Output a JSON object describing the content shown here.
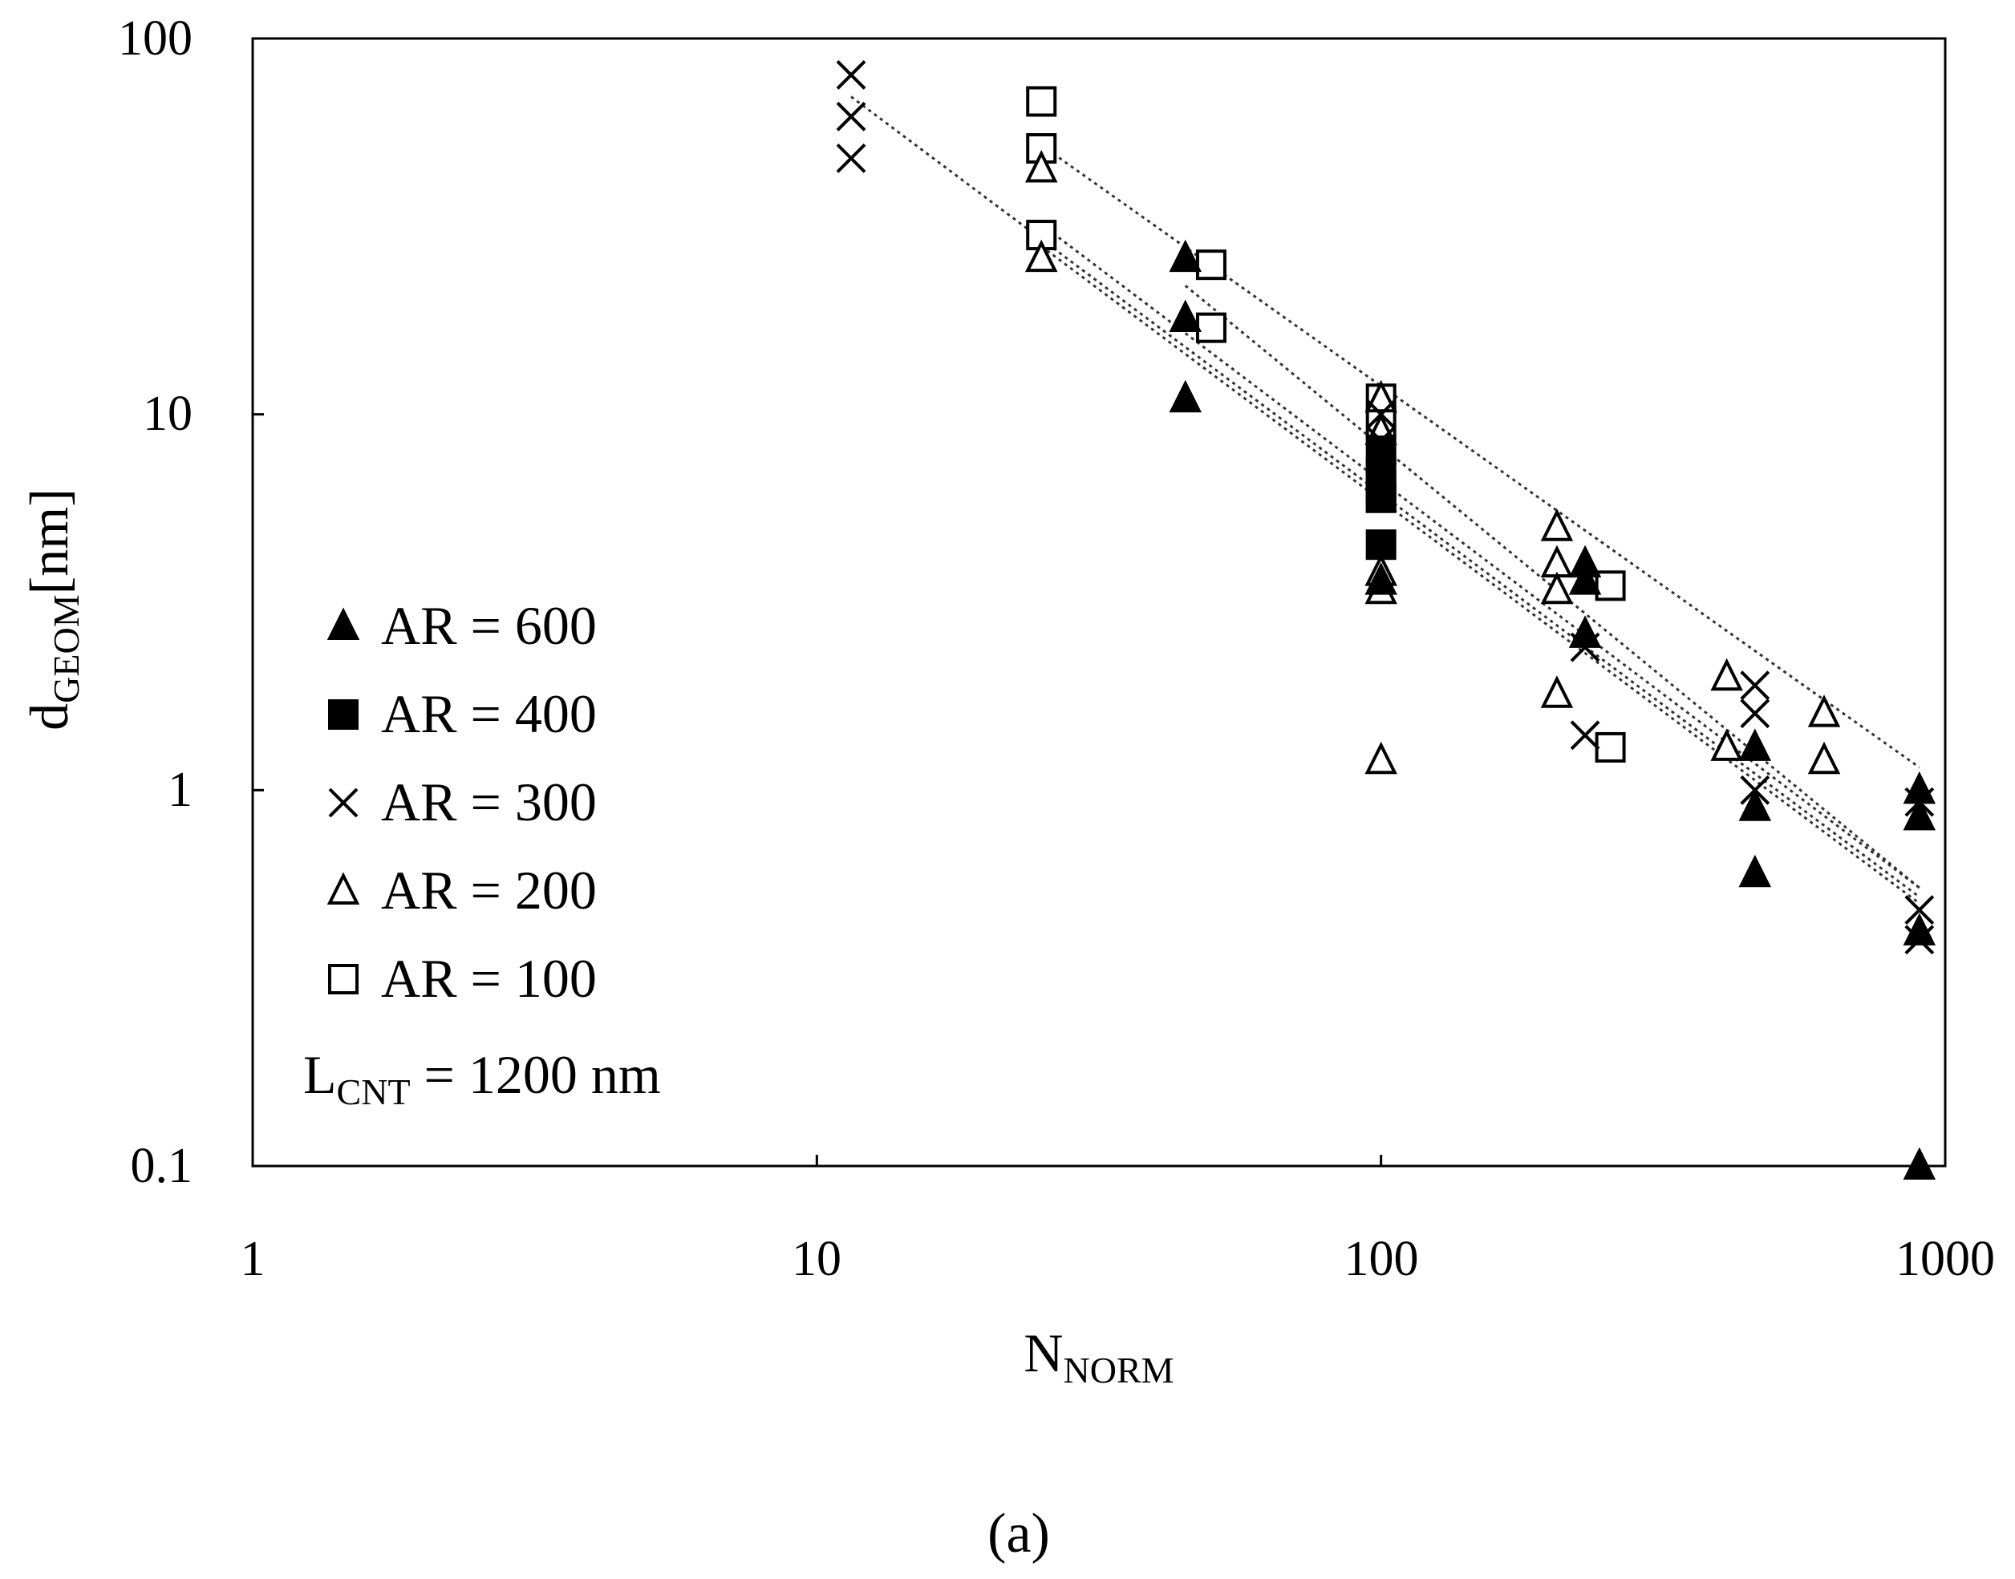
{
  "chart_data": {
    "type": "scatter",
    "x_scale": "log",
    "y_scale": "log",
    "xlim": [
      1,
      1000
    ],
    "ylim": [
      0.1,
      100
    ],
    "x_ticks": [
      "1",
      "10",
      "100",
      "1000"
    ],
    "y_ticks": [
      "0.1",
      "1",
      "10",
      "100"
    ],
    "xlabel": {
      "main": "N",
      "sub": "NORM"
    },
    "ylabel": {
      "main": "d",
      "sub": "GEOM",
      "unit": "[nm]"
    },
    "annotation": {
      "main": "L",
      "sub": "CNT",
      "rest": " = 1200 nm"
    },
    "caption": "(a)",
    "series": [
      {
        "name": "AR = 600",
        "marker": "triangle-filled",
        "points": [
          [
            45,
            26
          ],
          [
            45,
            18
          ],
          [
            45,
            11
          ],
          [
            100,
            3.6
          ],
          [
            230,
            4
          ],
          [
            230,
            3.6
          ],
          [
            230,
            2.6
          ],
          [
            460,
            1.3
          ],
          [
            460,
            0.9
          ],
          [
            460,
            0.6
          ],
          [
            900,
            1
          ],
          [
            900,
            0.85
          ],
          [
            900,
            0.42
          ],
          [
            900,
            0.1
          ]
        ]
      },
      {
        "name": "AR = 400",
        "marker": "square-filled",
        "points": [
          [
            100,
            8
          ],
          [
            100,
            7
          ],
          [
            100,
            6.5
          ],
          [
            100,
            6
          ],
          [
            100,
            4.5
          ]
        ]
      },
      {
        "name": "AR = 300",
        "marker": "x",
        "points": [
          [
            11.5,
            80
          ],
          [
            11.5,
            62
          ],
          [
            11.5,
            48
          ],
          [
            100,
            10
          ],
          [
            100,
            8.5
          ],
          [
            230,
            2.4
          ],
          [
            230,
            1.4
          ],
          [
            460,
            1.9
          ],
          [
            460,
            1.6
          ],
          [
            460,
            1
          ],
          [
            900,
            0.48
          ],
          [
            900,
            0.4
          ],
          [
            900,
            0.93
          ]
        ]
      },
      {
        "name": "AR = 200",
        "marker": "triangle-open",
        "points": [
          [
            25,
            45
          ],
          [
            25,
            26
          ],
          [
            100,
            11
          ],
          [
            100,
            9
          ],
          [
            100,
            3.4
          ],
          [
            100,
            3.8
          ],
          [
            100,
            1.2
          ],
          [
            205,
            5
          ],
          [
            205,
            4
          ],
          [
            205,
            3.4
          ],
          [
            205,
            1.8
          ],
          [
            410,
            2
          ],
          [
            410,
            1.3
          ],
          [
            610,
            1.6
          ],
          [
            610,
            1.2
          ]
        ]
      },
      {
        "name": "AR = 100",
        "marker": "square-open",
        "points": [
          [
            25,
            68
          ],
          [
            25,
            51
          ],
          [
            25,
            30
          ],
          [
            50,
            25
          ],
          [
            50,
            17
          ],
          [
            100,
            11
          ],
          [
            100,
            9.5
          ],
          [
            100,
            6
          ],
          [
            255,
            3.5
          ],
          [
            255,
            1.3
          ]
        ]
      }
    ],
    "trendlines": [
      {
        "x": [
          11.5,
          900
        ],
        "y": [
          70,
          0.52
        ]
      },
      {
        "x": [
          25,
          900
        ],
        "y": [
          32,
          0.55
        ]
      },
      {
        "x": [
          25,
          900
        ],
        "y": [
          28,
          0.5
        ]
      },
      {
        "x": [
          25,
          900
        ],
        "y": [
          52,
          1.15
        ]
      },
      {
        "x": [
          45,
          900
        ],
        "y": [
          22,
          0.55
        ]
      }
    ]
  }
}
